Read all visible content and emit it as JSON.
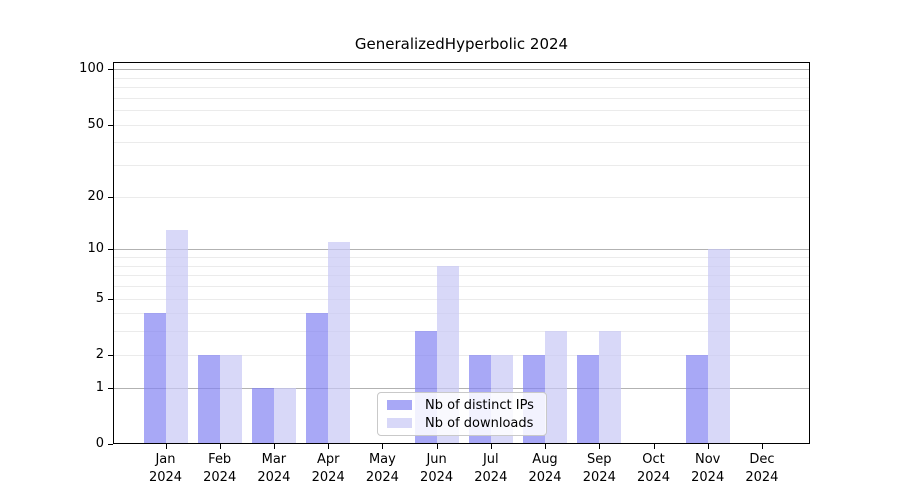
{
  "title": "GeneralizedHyperbolic 2024",
  "legend": {
    "position": "bottom-center",
    "items": [
      {
        "label": "Nb of distinct IPs",
        "color": "rgba(131,131,242,0.7)"
      },
      {
        "label": "Nb of downloads",
        "color": "rgba(199,199,245,0.7)"
      }
    ]
  },
  "chart_data": {
    "type": "bar",
    "title": "GeneralizedHyperbolic 2024",
    "xlabel": "",
    "ylabel": "",
    "yscale": "log10(1+y)",
    "ylim": [
      0,
      109
    ],
    "grid": "major+minor",
    "categories": [
      "Jan 2024",
      "Feb 2024",
      "Mar 2024",
      "Apr 2024",
      "May 2024",
      "Jun 2024",
      "Jul 2024",
      "Aug 2024",
      "Sep 2024",
      "Oct 2024",
      "Nov 2024",
      "Dec 2024"
    ],
    "series": [
      {
        "name": "Nb of distinct IPs",
        "color": "rgba(131,131,242,0.7)",
        "values": [
          4,
          2,
          1,
          4,
          0,
          3,
          2,
          2,
          2,
          0,
          2,
          0
        ]
      },
      {
        "name": "Nb of downloads",
        "color": "rgba(199,199,245,0.7)",
        "values": [
          13,
          2,
          1,
          11,
          0,
          8,
          2,
          3,
          3,
          0,
          10,
          0
        ]
      }
    ],
    "yticks": [
      0,
      1,
      2,
      5,
      10,
      20,
      50,
      100
    ],
    "major_gridlines": [
      1,
      10,
      100
    ],
    "minor_gridlines": [
      2,
      3,
      4,
      5,
      6,
      7,
      8,
      9,
      20,
      30,
      40,
      50,
      60,
      70,
      80,
      90
    ],
    "colors": {
      "grid_major": "#b2b2b2",
      "grid_minor": "#ebebeb",
      "axis": "#000000",
      "bar_distinct_ips_rendered": "#a8a8f6",
      "bar_downloads_rendered": "#d8d8f8"
    }
  }
}
